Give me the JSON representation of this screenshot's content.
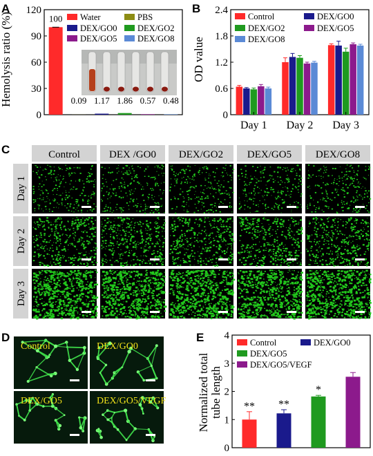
{
  "panels": {
    "A": "A",
    "B": "B",
    "C": "C",
    "D": "D",
    "E": "E"
  },
  "colors": {
    "red": "#ff2a2a",
    "olive": "#8c8c14",
    "navy": "#1a1a8c",
    "green": "#1f9a1f",
    "purple": "#8c1a8c",
    "blue": "#5b8ad6",
    "cell_green": "#22c81c",
    "header_gray": "#d3d3d3"
  },
  "chart_data": [
    {
      "id": "A",
      "type": "bar",
      "ylabel": "Hemolysis ratio (%)",
      "ylim": [
        0,
        120
      ],
      "yticks": [
        0,
        30,
        60,
        90,
        120
      ],
      "categories": [
        "Water",
        "PBS",
        "DEX/GO0",
        "DEX/GO2",
        "DEX/GO5",
        "DEX/GO8"
      ],
      "values": [
        100,
        0.09,
        1.17,
        1.86,
        0.57,
        0.48
      ],
      "value_labels": [
        "100",
        "0.09",
        "1.17",
        "1.86",
        "0.57",
        "0.48"
      ],
      "bar_colors": [
        "#ff2a2a",
        "#8c8c14",
        "#1a1a8c",
        "#1f9a1f",
        "#8c1a8c",
        "#5b8ad6"
      ],
      "legend": [
        "Water",
        "PBS",
        "DEX/GO0",
        "DEX/GO2",
        "DEX/GO5",
        "DEX/GO8"
      ],
      "inset": "photo of hemolysis tubes"
    },
    {
      "id": "B",
      "type": "bar",
      "ylabel": "OD value",
      "ylim": [
        0,
        2.4
      ],
      "yticks": [
        "0",
        "0.6",
        "1.2",
        "1.8",
        "2.4"
      ],
      "categories": [
        "Day 1",
        "Day 2",
        "Day 3"
      ],
      "series": [
        {
          "name": "Control",
          "color": "#ff2a2a",
          "values": [
            0.64,
            1.2,
            1.59
          ],
          "errors": [
            0.03,
            0.1,
            0.03
          ]
        },
        {
          "name": "DEX/GO0",
          "color": "#1a1a8c",
          "values": [
            0.6,
            1.32,
            1.58
          ],
          "errors": [
            0.02,
            0.08,
            0.1
          ]
        },
        {
          "name": "DEX/GO2",
          "color": "#1f9a1f",
          "values": [
            0.58,
            1.3,
            1.44
          ],
          "errors": [
            0.03,
            0.05,
            0.08
          ]
        },
        {
          "name": "DEX/GO5",
          "color": "#8c1a8c",
          "values": [
            0.65,
            1.17,
            1.61
          ],
          "errors": [
            0.04,
            0.03,
            0.03
          ]
        },
        {
          "name": "DEX/GO8",
          "color": "#5b8ad6",
          "values": [
            0.6,
            1.19,
            1.58
          ],
          "errors": [
            0.03,
            0.03,
            0.03
          ]
        }
      ]
    },
    {
      "id": "E",
      "type": "bar",
      "ylabel_lines": [
        "Normalized total",
        "tube length"
      ],
      "ylim": [
        0,
        4
      ],
      "yticks": [
        "0",
        "1",
        "2",
        "3",
        "4"
      ],
      "categories": [
        "Control",
        "DEX/GO0",
        "DEX/GO5",
        "DEX/GO5/VEGF"
      ],
      "values": [
        1.0,
        1.22,
        1.82,
        2.52
      ],
      "errors": [
        0.28,
        0.13,
        0.04,
        0.15
      ],
      "bar_colors": [
        "#ff2a2a",
        "#1a1a8c",
        "#1f9a1f",
        "#8c1a8c"
      ],
      "significance": [
        "**",
        "**",
        "*",
        ""
      ],
      "legend": [
        "Control",
        "DEX/GO0",
        "DEX/GO5",
        "DEX/GO5/VEGF"
      ]
    }
  ],
  "panelC": {
    "columns": [
      "Control",
      "DEX /GO0",
      "DEX/GO2",
      "DEX/GO5",
      "DEX/GO8"
    ],
    "rows": [
      "Day 1",
      "Day 2",
      "Day 3"
    ],
    "densities": [
      0.25,
      0.55,
      1.0
    ]
  },
  "panelD": {
    "labels": [
      "Control",
      "DEX/GO0",
      "DEX/GO5",
      "DEX/GO5/VEGF"
    ]
  }
}
